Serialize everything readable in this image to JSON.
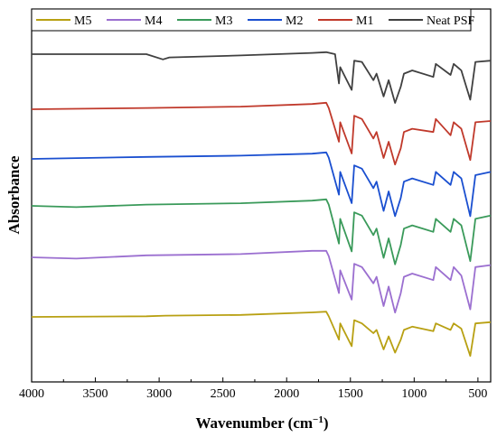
{
  "chart_data": {
    "type": "line",
    "title": "",
    "xlabel": "Wavenumber (cm",
    "xlabel_sup": "−1",
    "xlabel_end": ")",
    "ylabel": "Absorbance",
    "xlim": [
      4000,
      400
    ],
    "x_reversed": true,
    "x_ticks": [
      4000,
      3500,
      3000,
      2500,
      2000,
      1500,
      1000,
      500
    ],
    "y_ticks_shown": false,
    "grid": false,
    "legend_position": "top",
    "series": [
      {
        "name": "M5",
        "color": "#b8a012",
        "offset": 0,
        "points": [
          [
            4000,
            0
          ],
          [
            3100,
            0.01
          ],
          [
            2950,
            0.02
          ],
          [
            2360,
            0.03
          ],
          [
            1800,
            0.07
          ],
          [
            1690,
            0.08
          ],
          [
            1670,
            0.01
          ],
          [
            1590,
            -0.35
          ],
          [
            1580,
            -0.1
          ],
          [
            1490,
            -0.45
          ],
          [
            1470,
            -0.05
          ],
          [
            1410,
            -0.1
          ],
          [
            1320,
            -0.25
          ],
          [
            1295,
            -0.2
          ],
          [
            1240,
            -0.5
          ],
          [
            1200,
            -0.3
          ],
          [
            1150,
            -0.55
          ],
          [
            1105,
            -0.35
          ],
          [
            1080,
            -0.2
          ],
          [
            1015,
            -0.15
          ],
          [
            850,
            -0.22
          ],
          [
            830,
            -0.1
          ],
          [
            715,
            -0.2
          ],
          [
            690,
            -0.1
          ],
          [
            630,
            -0.18
          ],
          [
            560,
            -0.6
          ],
          [
            520,
            -0.1
          ],
          [
            400,
            -0.08
          ]
        ]
      },
      {
        "name": "M4",
        "color": "#9b6fd0",
        "offset": 0,
        "points": [
          [
            4000,
            0
          ],
          [
            3650,
            -0.02
          ],
          [
            3100,
            0.03
          ],
          [
            2360,
            0.05
          ],
          [
            1800,
            0.1
          ],
          [
            1690,
            0.1
          ],
          [
            1670,
            0.02
          ],
          [
            1590,
            -0.55
          ],
          [
            1580,
            -0.2
          ],
          [
            1490,
            -0.65
          ],
          [
            1470,
            -0.1
          ],
          [
            1410,
            -0.15
          ],
          [
            1320,
            -0.4
          ],
          [
            1295,
            -0.3
          ],
          [
            1240,
            -0.75
          ],
          [
            1200,
            -0.45
          ],
          [
            1150,
            -0.85
          ],
          [
            1105,
            -0.55
          ],
          [
            1080,
            -0.3
          ],
          [
            1015,
            -0.25
          ],
          [
            850,
            -0.35
          ],
          [
            830,
            -0.15
          ],
          [
            715,
            -0.35
          ],
          [
            690,
            -0.15
          ],
          [
            630,
            -0.28
          ],
          [
            560,
            -0.8
          ],
          [
            520,
            -0.15
          ],
          [
            400,
            -0.12
          ]
        ]
      },
      {
        "name": "M3",
        "color": "#3a9a5a",
        "offset": 0,
        "points": [
          [
            4000,
            0
          ],
          [
            3650,
            -0.02
          ],
          [
            3100,
            0.02
          ],
          [
            2360,
            0.04
          ],
          [
            1800,
            0.08
          ],
          [
            1690,
            0.1
          ],
          [
            1670,
            0.02
          ],
          [
            1590,
            -0.58
          ],
          [
            1580,
            -0.2
          ],
          [
            1490,
            -0.7
          ],
          [
            1470,
            -0.1
          ],
          [
            1410,
            -0.15
          ],
          [
            1320,
            -0.45
          ],
          [
            1295,
            -0.35
          ],
          [
            1240,
            -0.8
          ],
          [
            1200,
            -0.5
          ],
          [
            1150,
            -0.9
          ],
          [
            1105,
            -0.6
          ],
          [
            1080,
            -0.35
          ],
          [
            1015,
            -0.3
          ],
          [
            850,
            -0.4
          ],
          [
            830,
            -0.2
          ],
          [
            715,
            -0.4
          ],
          [
            690,
            -0.2
          ],
          [
            630,
            -0.3
          ],
          [
            560,
            -0.85
          ],
          [
            520,
            -0.2
          ],
          [
            400,
            -0.15
          ]
        ]
      },
      {
        "name": "M2",
        "color": "#1a4fd0",
        "offset": 0,
        "points": [
          [
            4000,
            0
          ],
          [
            3100,
            0.03
          ],
          [
            2360,
            0.05
          ],
          [
            1800,
            0.08
          ],
          [
            1690,
            0.1
          ],
          [
            1670,
            0.02
          ],
          [
            1590,
            -0.55
          ],
          [
            1580,
            -0.2
          ],
          [
            1490,
            -0.68
          ],
          [
            1470,
            -0.1
          ],
          [
            1410,
            -0.15
          ],
          [
            1320,
            -0.45
          ],
          [
            1295,
            -0.35
          ],
          [
            1240,
            -0.8
          ],
          [
            1200,
            -0.5
          ],
          [
            1150,
            -0.88
          ],
          [
            1105,
            -0.6
          ],
          [
            1080,
            -0.35
          ],
          [
            1015,
            -0.3
          ],
          [
            850,
            -0.4
          ],
          [
            830,
            -0.2
          ],
          [
            715,
            -0.4
          ],
          [
            690,
            -0.2
          ],
          [
            630,
            -0.3
          ],
          [
            560,
            -0.88
          ],
          [
            520,
            -0.25
          ],
          [
            400,
            -0.2
          ]
        ]
      },
      {
        "name": "M1",
        "color": "#c0392b",
        "offset": 0,
        "points": [
          [
            4000,
            0
          ],
          [
            3100,
            0.02
          ],
          [
            2360,
            0.04
          ],
          [
            1800,
            0.08
          ],
          [
            1690,
            0.1
          ],
          [
            1670,
            0.02
          ],
          [
            1590,
            -0.5
          ],
          [
            1580,
            -0.2
          ],
          [
            1490,
            -0.68
          ],
          [
            1470,
            -0.1
          ],
          [
            1410,
            -0.15
          ],
          [
            1320,
            -0.45
          ],
          [
            1295,
            -0.35
          ],
          [
            1240,
            -0.75
          ],
          [
            1200,
            -0.5
          ],
          [
            1150,
            -0.85
          ],
          [
            1105,
            -0.6
          ],
          [
            1080,
            -0.35
          ],
          [
            1015,
            -0.3
          ],
          [
            850,
            -0.35
          ],
          [
            830,
            -0.15
          ],
          [
            715,
            -0.4
          ],
          [
            690,
            -0.2
          ],
          [
            630,
            -0.3
          ],
          [
            560,
            -0.78
          ],
          [
            520,
            -0.2
          ],
          [
            400,
            -0.18
          ]
        ]
      },
      {
        "name": "Neat PSF",
        "color": "#404040",
        "offset": 0,
        "points": [
          [
            4000,
            0
          ],
          [
            3100,
            0.0
          ],
          [
            2970,
            -0.08
          ],
          [
            2920,
            -0.05
          ],
          [
            2360,
            -0.02
          ],
          [
            1800,
            0.02
          ],
          [
            1690,
            0.03
          ],
          [
            1620,
            0.0
          ],
          [
            1590,
            -0.45
          ],
          [
            1580,
            -0.2
          ],
          [
            1490,
            -0.55
          ],
          [
            1470,
            -0.1
          ],
          [
            1410,
            -0.12
          ],
          [
            1320,
            -0.4
          ],
          [
            1295,
            -0.3
          ],
          [
            1240,
            -0.65
          ],
          [
            1200,
            -0.4
          ],
          [
            1150,
            -0.75
          ],
          [
            1105,
            -0.5
          ],
          [
            1080,
            -0.3
          ],
          [
            1015,
            -0.25
          ],
          [
            850,
            -0.35
          ],
          [
            830,
            -0.15
          ],
          [
            715,
            -0.32
          ],
          [
            690,
            -0.15
          ],
          [
            630,
            -0.25
          ],
          [
            560,
            -0.7
          ],
          [
            520,
            -0.12
          ],
          [
            400,
            -0.1
          ]
        ]
      }
    ]
  }
}
